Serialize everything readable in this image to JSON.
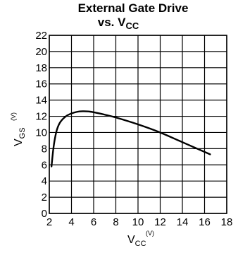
{
  "chart_data": {
    "type": "line",
    "title": {
      "line1": "External Gate Drive",
      "line2_main": "vs. V",
      "line2_sub": "CC"
    },
    "xlabel": {
      "main": "V",
      "sub": "CC",
      "unit": "(V)"
    },
    "ylabel": {
      "main": "V",
      "sub": "GS",
      "unit": "(V)"
    },
    "xlim": [
      2,
      18
    ],
    "ylim": [
      0,
      22
    ],
    "xticks": [
      "2",
      "4",
      "6",
      "8",
      "10",
      "12",
      "14",
      "16",
      "18"
    ],
    "yticks": [
      "0",
      "2",
      "4",
      "6",
      "8",
      "10",
      "12",
      "14",
      "16",
      "18",
      "20",
      "22"
    ],
    "grid": true,
    "series": [
      {
        "color": "#000000",
        "x": [
          2.2,
          2.35,
          2.5,
          2.7,
          3.0,
          3.5,
          4.0,
          4.5,
          5.0,
          5.5,
          6.0,
          7.0,
          8.0,
          10.0,
          12.0,
          14.0,
          16.5
        ],
        "y": [
          5.8,
          7.8,
          9.2,
          10.4,
          11.3,
          12.0,
          12.35,
          12.55,
          12.62,
          12.6,
          12.5,
          12.2,
          11.85,
          11.0,
          10.0,
          8.8,
          7.3
        ]
      }
    ]
  }
}
